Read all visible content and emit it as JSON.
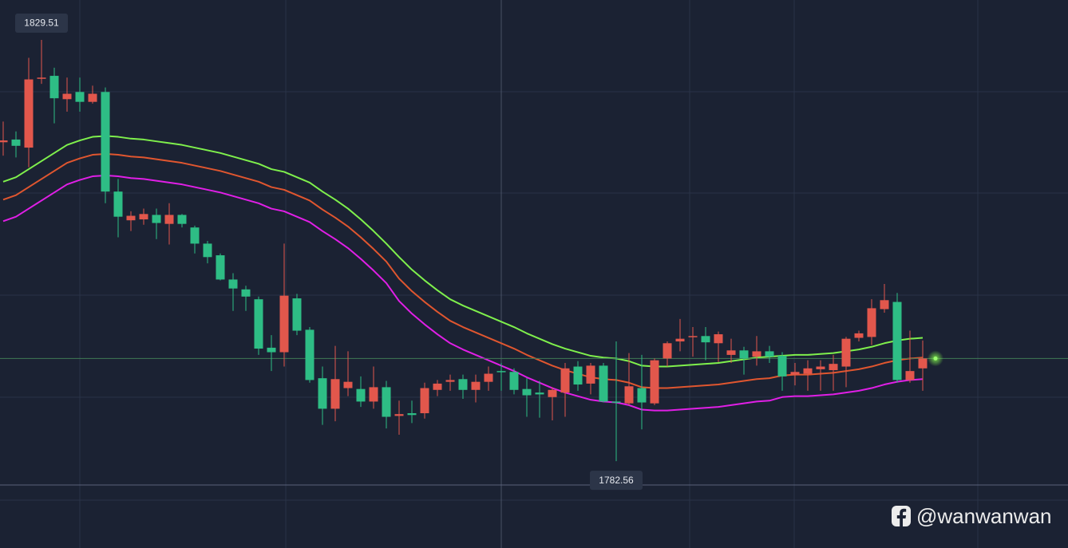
{
  "chart_data": {
    "type": "candlestick",
    "up_color": "#e2574c",
    "down_color": "#2ebd85",
    "ylim": [
      1772.88,
      1833.95
    ],
    "open": [
      1818.1,
      1818.4,
      1817.5,
      1825.2,
      1825.5,
      1822.9,
      1823.7,
      1822.6,
      1823.7,
      1812.6,
      1809.4,
      1809.5,
      1810.0,
      1809.0,
      1810.0,
      1808.6,
      1806.8,
      1805.5,
      1802.8,
      1801.7,
      1800.6,
      1795.2,
      1794.7,
      1800.7,
      1797.2,
      1791.8,
      1788.4,
      1790.7,
      1790.6,
      1789.2,
      1790.8,
      1787.6,
      1787.9,
      1787.9,
      1790.5,
      1791.4,
      1791.7,
      1790.5,
      1791.4,
      1792.6,
      1792.5,
      1790.6,
      1790.2,
      1789.7,
      1790.2,
      1793.1,
      1791.2,
      1793.2,
      1789.2,
      1789.0,
      1790.7,
      1789.0,
      1794.0,
      1795.9,
      1796.4,
      1796.5,
      1795.7,
      1794.4,
      1794.9,
      1794.2,
      1794.8,
      1794.3,
      1792.2,
      1792.3,
      1792.8,
      1792.7,
      1793.1,
      1796.3,
      1796.4,
      1799.5,
      1800.3,
      1791.6,
      1792.9
    ],
    "high": [
      1820.4,
      1819.3,
      1827.5,
      1829.51,
      1826.4,
      1825.3,
      1825.3,
      1824.4,
      1824.2,
      1814.0,
      1810.4,
      1810.7,
      1810.7,
      1811.3,
      1810.1,
      1808.8,
      1807.1,
      1805.7,
      1803.5,
      1802.1,
      1800.9,
      1796.6,
      1806.8,
      1801.2,
      1797.5,
      1793.1,
      1795.4,
      1794.8,
      1792.0,
      1793.1,
      1791.5,
      1789.3,
      1789.3,
      1791.3,
      1791.6,
      1792.2,
      1792.2,
      1792.2,
      1793.1,
      1793.5,
      1792.9,
      1791.8,
      1791.5,
      1790.8,
      1793.5,
      1793.7,
      1793.5,
      1793.5,
      1795.9,
      1794.6,
      1794.4,
      1794.0,
      1795.9,
      1798.4,
      1797.5,
      1797.5,
      1797.0,
      1796.2,
      1795.3,
      1796.5,
      1795.4,
      1794.7,
      1793.5,
      1793.8,
      1793.8,
      1794.4,
      1796.4,
      1797.1,
      1800.6,
      1802.3,
      1801.3,
      1797.1,
      1796.0
    ],
    "low": [
      1816.6,
      1816.4,
      1815.3,
      1824.6,
      1820.2,
      1821.5,
      1821.5,
      1822.4,
      1811.3,
      1807.5,
      1808.2,
      1808.9,
      1807.3,
      1806.7,
      1808.6,
      1805.7,
      1804.6,
      1802.7,
      1799.3,
      1799.3,
      1794.4,
      1792.6,
      1793.1,
      1796.6,
      1791.3,
      1786.6,
      1787.0,
      1789.8,
      1788.6,
      1788.4,
      1786.2,
      1785.5,
      1786.8,
      1787.3,
      1789.8,
      1790.4,
      1789.5,
      1789.1,
      1790.4,
      1790.4,
      1790.0,
      1787.5,
      1787.4,
      1787.1,
      1787.5,
      1790.4,
      1790.0,
      1789.1,
      1782.56,
      1788.8,
      1786.1,
      1788.8,
      1793.1,
      1794.8,
      1794.2,
      1793.8,
      1793.6,
      1793.5,
      1792.2,
      1793.2,
      1793.5,
      1790.4,
      1791.0,
      1790.4,
      1790.4,
      1790.4,
      1790.8,
      1795.9,
      1795.5,
      1799.1,
      1791.3,
      1791.3,
      1790.4
    ],
    "close": [
      1818.3,
      1817.7,
      1825.1,
      1825.3,
      1823.0,
      1823.5,
      1822.6,
      1823.5,
      1812.6,
      1809.8,
      1809.9,
      1810.1,
      1809.1,
      1810.0,
      1809.0,
      1806.8,
      1805.3,
      1802.8,
      1801.8,
      1800.9,
      1795.1,
      1794.7,
      1801.0,
      1797.1,
      1791.6,
      1788.4,
      1791.7,
      1791.4,
      1789.2,
      1790.8,
      1787.5,
      1787.8,
      1787.7,
      1790.7,
      1791.2,
      1791.6,
      1790.5,
      1791.4,
      1792.3,
      1792.5,
      1790.5,
      1789.9,
      1790.0,
      1790.5,
      1792.9,
      1791.1,
      1793.2,
      1789.2,
      1789.1,
      1790.9,
      1789.1,
      1793.8,
      1795.7,
      1796.2,
      1796.5,
      1795.8,
      1796.7,
      1794.9,
      1794.0,
      1794.8,
      1794.2,
      1792.0,
      1792.5,
      1792.9,
      1793.1,
      1793.4,
      1796.2,
      1796.8,
      1799.6,
      1800.5,
      1791.6,
      1792.6,
      1794.0
    ],
    "series": [
      {
        "color": "#7ff04c",
        "values": [
          1813.7,
          1814.2,
          1815.1,
          1816.0,
          1816.9,
          1817.8,
          1818.3,
          1818.7,
          1818.8,
          1818.7,
          1818.5,
          1818.4,
          1818.2,
          1818.0,
          1817.8,
          1817.5,
          1817.2,
          1816.9,
          1816.5,
          1816.1,
          1815.7,
          1815.1,
          1814.8,
          1814.2,
          1813.6,
          1812.6,
          1811.7,
          1810.7,
          1809.5,
          1808.2,
          1806.8,
          1805.3,
          1803.9,
          1802.7,
          1801.6,
          1800.6,
          1799.9,
          1799.3,
          1798.7,
          1798.1,
          1797.5,
          1796.8,
          1796.2,
          1795.6,
          1795.1,
          1794.7,
          1794.3,
          1794.1,
          1794.0,
          1793.7,
          1793.2,
          1793.1,
          1793.1,
          1793.2,
          1793.3,
          1793.4,
          1793.5,
          1793.7,
          1793.9,
          1794.1,
          1794.2,
          1794.3,
          1794.4,
          1794.4,
          1794.5,
          1794.6,
          1794.8,
          1795.0,
          1795.3,
          1795.7,
          1796.0,
          1796.2,
          1796.3
        ]
      },
      {
        "color": "#e0562f",
        "values": [
          1811.7,
          1812.2,
          1813.1,
          1814.0,
          1814.9,
          1815.8,
          1816.3,
          1816.7,
          1816.8,
          1816.7,
          1816.5,
          1816.4,
          1816.2,
          1816.0,
          1815.8,
          1815.5,
          1815.2,
          1814.9,
          1814.5,
          1814.1,
          1813.7,
          1813.1,
          1812.8,
          1812.2,
          1811.6,
          1810.6,
          1809.7,
          1808.7,
          1807.5,
          1806.2,
          1804.8,
          1802.9,
          1801.5,
          1800.3,
          1799.2,
          1798.2,
          1797.5,
          1796.9,
          1796.3,
          1795.7,
          1795.1,
          1794.4,
          1793.8,
          1793.2,
          1792.7,
          1792.3,
          1791.9,
          1791.7,
          1791.6,
          1791.3,
          1790.8,
          1790.7,
          1790.7,
          1790.8,
          1790.9,
          1791.0,
          1791.1,
          1791.3,
          1791.5,
          1791.7,
          1791.8,
          1792.1,
          1792.2,
          1792.2,
          1792.3,
          1792.4,
          1792.6,
          1792.8,
          1793.1,
          1793.5,
          1793.8,
          1794.0,
          1794.1
        ]
      },
      {
        "color": "#e01fe6",
        "values": [
          1809.3,
          1809.8,
          1810.7,
          1811.6,
          1812.5,
          1813.4,
          1813.9,
          1814.3,
          1814.4,
          1814.3,
          1814.1,
          1814.0,
          1813.8,
          1813.6,
          1813.4,
          1813.1,
          1812.8,
          1812.5,
          1812.1,
          1811.7,
          1811.3,
          1810.7,
          1810.4,
          1809.8,
          1809.2,
          1808.2,
          1807.3,
          1806.3,
          1805.1,
          1803.8,
          1802.4,
          1800.4,
          1799.0,
          1797.8,
          1796.7,
          1795.7,
          1795.0,
          1794.4,
          1793.8,
          1793.2,
          1792.6,
          1791.9,
          1791.3,
          1790.7,
          1790.2,
          1789.8,
          1789.4,
          1789.2,
          1789.1,
          1788.8,
          1788.3,
          1788.2,
          1788.2,
          1788.3,
          1788.4,
          1788.5,
          1788.6,
          1788.8,
          1789.0,
          1789.2,
          1789.3,
          1789.7,
          1789.8,
          1789.8,
          1789.9,
          1790.0,
          1790.2,
          1790.4,
          1790.7,
          1791.1,
          1791.4,
          1791.6,
          1791.7
        ]
      }
    ],
    "watermark": "@wanwanwan"
  }
}
